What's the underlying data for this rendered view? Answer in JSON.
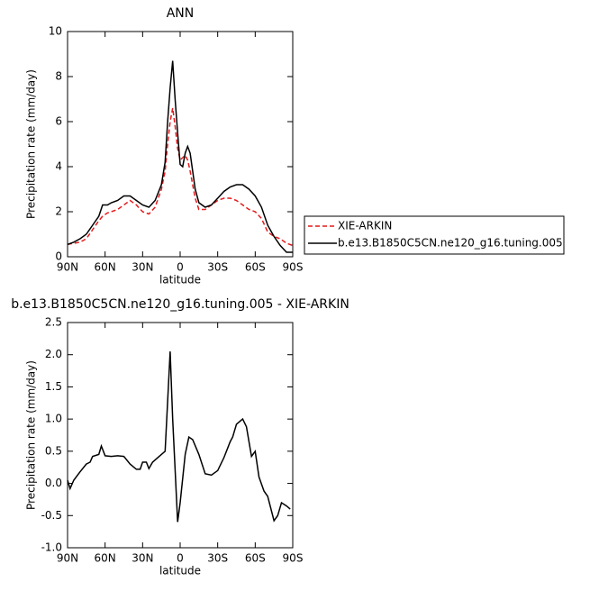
{
  "chart_data": [
    {
      "type": "line",
      "title": "ANN",
      "ylabel": "Precipitation rate (mm/day)",
      "xlabel": "latitude",
      "x": [
        90,
        85,
        80,
        75,
        70,
        65,
        62,
        58,
        55,
        50,
        45,
        40,
        35,
        30,
        25,
        20,
        15,
        12,
        10,
        8,
        6,
        4,
        2,
        0,
        -2,
        -4,
        -6,
        -8,
        -10,
        -12,
        -15,
        -20,
        -25,
        -30,
        -35,
        -40,
        -45,
        -50,
        -55,
        -60,
        -65,
        -70,
        -75,
        -80,
        -85,
        -90
      ],
      "series": [
        {
          "name": "XIE-ARKIN",
          "color": "#e41a1c",
          "style": "dashed",
          "values": [
            0.55,
            0.6,
            0.65,
            0.8,
            1.2,
            1.6,
            1.8,
            1.95,
            2.0,
            2.1,
            2.3,
            2.5,
            2.3,
            2.0,
            1.9,
            2.2,
            3.0,
            3.8,
            5.0,
            6.0,
            6.6,
            5.8,
            4.8,
            4.3,
            4.4,
            4.5,
            4.3,
            3.8,
            3.2,
            2.6,
            2.1,
            2.1,
            2.3,
            2.5,
            2.6,
            2.6,
            2.5,
            2.3,
            2.1,
            2.0,
            1.7,
            1.1,
            0.9,
            0.8,
            0.6,
            0.5
          ]
        },
        {
          "name": "b.e13.B1850C5CN.ne120_g16.tuning.005",
          "color": "#000000",
          "style": "solid",
          "values": [
            0.55,
            0.65,
            0.8,
            1.0,
            1.4,
            1.8,
            2.3,
            2.3,
            2.4,
            2.5,
            2.7,
            2.7,
            2.5,
            2.3,
            2.2,
            2.5,
            3.2,
            4.2,
            6.0,
            7.5,
            8.7,
            7.0,
            5.5,
            4.1,
            4.0,
            4.6,
            4.9,
            4.6,
            3.8,
            3.0,
            2.4,
            2.2,
            2.3,
            2.6,
            2.9,
            3.1,
            3.2,
            3.2,
            3.0,
            2.7,
            2.2,
            1.4,
            0.9,
            0.5,
            0.2,
            0.2
          ]
        }
      ],
      "xlim": [
        90,
        -90
      ],
      "xticks": [
        {
          "value": 90,
          "label": "90N"
        },
        {
          "value": 60,
          "label": "60N"
        },
        {
          "value": 30,
          "label": "30N"
        },
        0,
        {
          "value": -30,
          "label": "30S"
        },
        {
          "value": -60,
          "label": "60S"
        },
        {
          "value": -90,
          "label": "90S"
        }
      ],
      "ylim": [
        0,
        10
      ],
      "yticks": [
        0,
        2,
        4,
        6,
        8,
        10
      ],
      "legend": "right"
    },
    {
      "type": "line",
      "title": "b.e13.B1850C5CN.ne120_g16.tuning.005 - XIE-ARKIN",
      "ylabel": "Precipitation rate (mm/day)",
      "xlabel": "latitude",
      "x": [
        90,
        88,
        85,
        80,
        75,
        72,
        70,
        65,
        63,
        60,
        55,
        50,
        45,
        40,
        35,
        32,
        30,
        27,
        25,
        22,
        15,
        12,
        8,
        6,
        2,
        0,
        -4,
        -7,
        -10,
        -15,
        -20,
        -25,
        -30,
        -35,
        -40,
        -42,
        -45,
        -50,
        -53,
        -57,
        -60,
        -63,
        -67,
        -70,
        -75,
        -78,
        -81,
        -85,
        -88
      ],
      "series": [
        {
          "color": "#000000",
          "style": "solid",
          "values": [
            0.05,
            -0.08,
            0.05,
            0.18,
            0.3,
            0.33,
            0.42,
            0.45,
            0.58,
            0.43,
            0.42,
            0.43,
            0.42,
            0.3,
            0.22,
            0.22,
            0.33,
            0.33,
            0.23,
            0.33,
            0.45,
            0.5,
            2.05,
            1.0,
            -0.6,
            -0.3,
            0.45,
            0.72,
            0.68,
            0.45,
            0.15,
            0.13,
            0.2,
            0.4,
            0.65,
            0.72,
            0.92,
            1.0,
            0.88,
            0.42,
            0.5,
            0.1,
            -0.12,
            -0.2,
            -0.58,
            -0.5,
            -0.3,
            -0.35,
            -0.4
          ]
        }
      ],
      "xlim": [
        90,
        -90
      ],
      "xticks": [
        {
          "value": 90,
          "label": "90N"
        },
        {
          "value": 60,
          "label": "60N"
        },
        {
          "value": 30,
          "label": "30N"
        },
        0,
        {
          "value": -30,
          "label": "30S"
        },
        {
          "value": -60,
          "label": "60S"
        },
        {
          "value": -90,
          "label": "90S"
        }
      ],
      "ylim": [
        -1,
        2.5
      ],
      "yticks": [
        {
          "value": -1,
          "label": "-1.0"
        },
        -0.5,
        {
          "value": 0,
          "label": "0.0"
        },
        0.5,
        {
          "value": 1,
          "label": "1.0"
        },
        1.5,
        {
          "value": 2,
          "label": "2.0"
        },
        2.5
      ]
    }
  ]
}
